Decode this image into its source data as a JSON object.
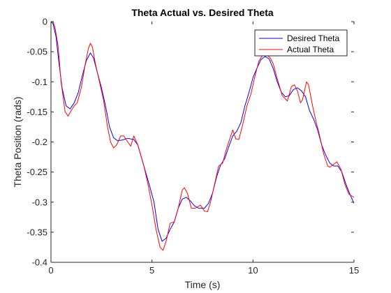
{
  "chart_data": {
    "type": "line",
    "title": "Theta Actual vs. Desired Theta",
    "xlabel": "Time (s)",
    "ylabel": "Theta Position (rads)",
    "xlim": [
      0,
      15
    ],
    "ylim": [
      -0.4,
      0
    ],
    "x_ticks": [
      0,
      5,
      10,
      15
    ],
    "x_tick_labels": [
      "0",
      "5",
      "10",
      "15"
    ],
    "y_ticks": [
      0,
      -0.05,
      -0.1,
      -0.15,
      -0.2,
      -0.25,
      -0.3,
      -0.35,
      -0.4
    ],
    "y_tick_labels": [
      "0",
      "-0.05",
      "-0.1",
      "-0.15",
      "-0.2",
      "-0.25",
      "-0.3",
      "-0.35",
      "-0.4"
    ],
    "grid": false,
    "legend_position": "top-right",
    "series": [
      {
        "name": "Desired Theta",
        "color": "#0000ff",
        "points": [
          [
            0.0,
            0.0
          ],
          [
            0.1,
            -0.003
          ],
          [
            0.25,
            -0.025
          ],
          [
            0.4,
            -0.07
          ],
          [
            0.55,
            -0.11
          ],
          [
            0.75,
            -0.14
          ],
          [
            0.95,
            -0.145
          ],
          [
            1.15,
            -0.135
          ],
          [
            1.35,
            -0.118
          ],
          [
            1.55,
            -0.09
          ],
          [
            1.75,
            -0.065
          ],
          [
            1.95,
            -0.052
          ],
          [
            2.1,
            -0.06
          ],
          [
            2.3,
            -0.085
          ],
          [
            2.5,
            -0.11
          ],
          [
            2.7,
            -0.14
          ],
          [
            2.9,
            -0.175
          ],
          [
            3.1,
            -0.193
          ],
          [
            3.3,
            -0.198
          ],
          [
            3.5,
            -0.197
          ],
          [
            3.8,
            -0.194
          ],
          [
            4.1,
            -0.196
          ],
          [
            4.3,
            -0.205
          ],
          [
            4.6,
            -0.24
          ],
          [
            4.9,
            -0.275
          ],
          [
            5.1,
            -0.3
          ],
          [
            5.3,
            -0.345
          ],
          [
            5.5,
            -0.365
          ],
          [
            5.7,
            -0.36
          ],
          [
            5.9,
            -0.345
          ],
          [
            6.1,
            -0.333
          ],
          [
            6.3,
            -0.31
          ],
          [
            6.5,
            -0.295
          ],
          [
            6.7,
            -0.292
          ],
          [
            6.9,
            -0.298
          ],
          [
            7.1,
            -0.306
          ],
          [
            7.3,
            -0.31
          ],
          [
            7.6,
            -0.31
          ],
          [
            7.8,
            -0.302
          ],
          [
            8.0,
            -0.285
          ],
          [
            8.2,
            -0.258
          ],
          [
            8.4,
            -0.238
          ],
          [
            8.6,
            -0.228
          ],
          [
            8.8,
            -0.208
          ],
          [
            9.0,
            -0.19
          ],
          [
            9.2,
            -0.182
          ],
          [
            9.4,
            -0.168
          ],
          [
            9.6,
            -0.14
          ],
          [
            9.8,
            -0.118
          ],
          [
            10.0,
            -0.093
          ],
          [
            10.2,
            -0.077
          ],
          [
            10.4,
            -0.063
          ],
          [
            10.6,
            -0.058
          ],
          [
            10.8,
            -0.062
          ],
          [
            11.0,
            -0.078
          ],
          [
            11.2,
            -0.1
          ],
          [
            11.4,
            -0.117
          ],
          [
            11.6,
            -0.125
          ],
          [
            11.8,
            -0.123
          ],
          [
            12.0,
            -0.113
          ],
          [
            12.2,
            -0.11
          ],
          [
            12.4,
            -0.115
          ],
          [
            12.6,
            -0.125
          ],
          [
            12.8,
            -0.148
          ],
          [
            13.0,
            -0.162
          ],
          [
            13.2,
            -0.18
          ],
          [
            13.4,
            -0.205
          ],
          [
            13.6,
            -0.222
          ],
          [
            13.8,
            -0.235
          ],
          [
            14.0,
            -0.24
          ],
          [
            14.2,
            -0.24
          ],
          [
            14.4,
            -0.25
          ],
          [
            14.6,
            -0.27
          ],
          [
            14.8,
            -0.287
          ],
          [
            15.0,
            -0.302
          ]
        ]
      },
      {
        "name": "Actual Theta",
        "color": "#ff0000",
        "points": [
          [
            0.0,
            0.0
          ],
          [
            0.1,
            0.0
          ],
          [
            0.2,
            -0.01
          ],
          [
            0.35,
            -0.04
          ],
          [
            0.5,
            -0.1
          ],
          [
            0.7,
            -0.15
          ],
          [
            0.85,
            -0.157
          ],
          [
            1.0,
            -0.148
          ],
          [
            1.15,
            -0.14
          ],
          [
            1.3,
            -0.135
          ],
          [
            1.5,
            -0.11
          ],
          [
            1.7,
            -0.07
          ],
          [
            1.85,
            -0.045
          ],
          [
            1.95,
            -0.036
          ],
          [
            2.05,
            -0.042
          ],
          [
            2.2,
            -0.07
          ],
          [
            2.4,
            -0.1
          ],
          [
            2.6,
            -0.13
          ],
          [
            2.8,
            -0.175
          ],
          [
            2.95,
            -0.2
          ],
          [
            3.1,
            -0.21
          ],
          [
            3.25,
            -0.205
          ],
          [
            3.45,
            -0.19
          ],
          [
            3.6,
            -0.19
          ],
          [
            3.8,
            -0.2
          ],
          [
            3.95,
            -0.207
          ],
          [
            4.1,
            -0.19
          ],
          [
            4.3,
            -0.205
          ],
          [
            4.6,
            -0.24
          ],
          [
            4.8,
            -0.27
          ],
          [
            5.0,
            -0.305
          ],
          [
            5.2,
            -0.345
          ],
          [
            5.4,
            -0.375
          ],
          [
            5.55,
            -0.38
          ],
          [
            5.7,
            -0.365
          ],
          [
            5.9,
            -0.335
          ],
          [
            6.1,
            -0.333
          ],
          [
            6.3,
            -0.31
          ],
          [
            6.5,
            -0.28
          ],
          [
            6.6,
            -0.276
          ],
          [
            6.75,
            -0.285
          ],
          [
            6.95,
            -0.31
          ],
          [
            7.15,
            -0.31
          ],
          [
            7.4,
            -0.305
          ],
          [
            7.6,
            -0.315
          ],
          [
            7.75,
            -0.316
          ],
          [
            7.9,
            -0.3
          ],
          [
            8.1,
            -0.27
          ],
          [
            8.3,
            -0.24
          ],
          [
            8.5,
            -0.235
          ],
          [
            8.7,
            -0.21
          ],
          [
            8.9,
            -0.19
          ],
          [
            9.0,
            -0.18
          ],
          [
            9.15,
            -0.195
          ],
          [
            9.3,
            -0.196
          ],
          [
            9.5,
            -0.17
          ],
          [
            9.7,
            -0.14
          ],
          [
            9.9,
            -0.12
          ],
          [
            10.1,
            -0.09
          ],
          [
            10.3,
            -0.065
          ],
          [
            10.5,
            -0.055
          ],
          [
            10.7,
            -0.056
          ],
          [
            10.85,
            -0.06
          ],
          [
            11.0,
            -0.07
          ],
          [
            11.2,
            -0.095
          ],
          [
            11.45,
            -0.123
          ],
          [
            11.7,
            -0.132
          ],
          [
            11.9,
            -0.108
          ],
          [
            12.05,
            -0.105
          ],
          [
            12.2,
            -0.115
          ],
          [
            12.35,
            -0.135
          ],
          [
            12.45,
            -0.13
          ],
          [
            12.65,
            -0.1
          ],
          [
            12.75,
            -0.105
          ],
          [
            12.95,
            -0.14
          ],
          [
            13.1,
            -0.163
          ],
          [
            13.3,
            -0.19
          ],
          [
            13.5,
            -0.22
          ],
          [
            13.7,
            -0.24
          ],
          [
            13.8,
            -0.242
          ],
          [
            14.0,
            -0.237
          ],
          [
            14.15,
            -0.233
          ],
          [
            14.35,
            -0.245
          ],
          [
            14.55,
            -0.27
          ],
          [
            14.75,
            -0.287
          ],
          [
            14.9,
            -0.29
          ],
          [
            15.0,
            -0.292
          ]
        ]
      }
    ]
  }
}
